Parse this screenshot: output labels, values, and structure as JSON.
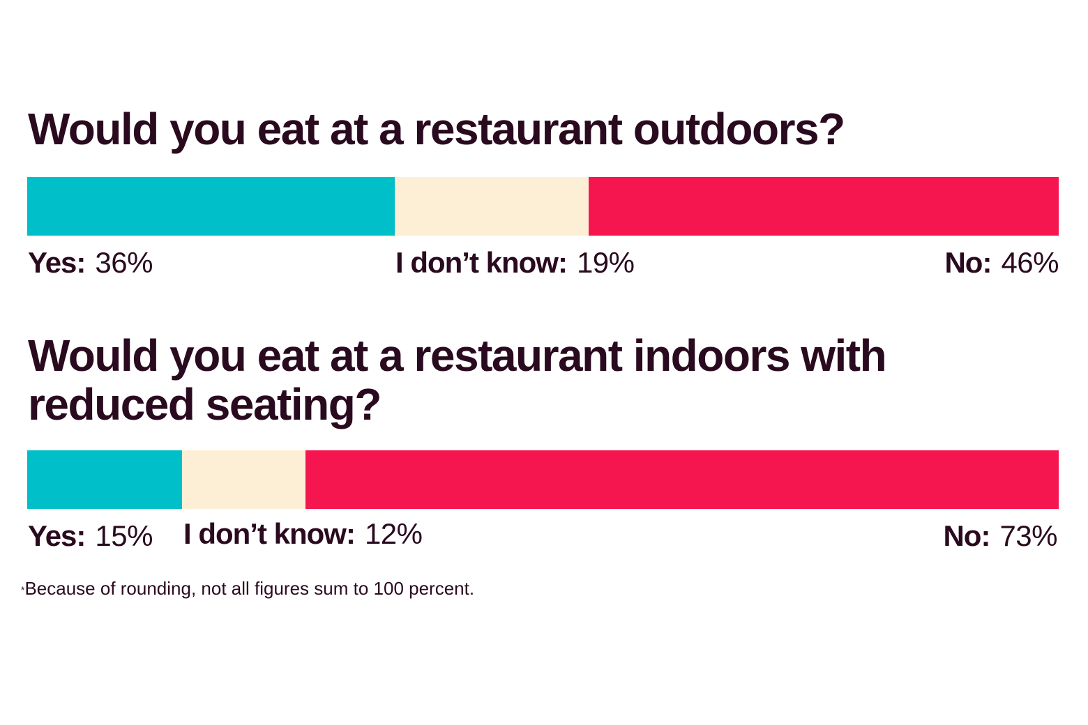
{
  "footnote": "Because of rounding, not all figures sum to 100 percent.",
  "footnote_mark": "*",
  "colors": {
    "yes": "#00bfc8",
    "dont_know": "#fcefd6",
    "no": "#f5164f"
  },
  "chart_data": [
    {
      "type": "bar",
      "title": "Would you eat at a restaurant outdoors?",
      "categories": [
        "Yes:",
        "I don’t know:",
        "No:"
      ],
      "values": [
        36,
        19,
        46
      ],
      "value_labels": [
        "36%",
        "19%",
        "46%"
      ],
      "stacked": true,
      "orientation": "horizontal",
      "legend": "none"
    },
    {
      "type": "bar",
      "title": "Would you eat at a restaurant indoors with reduced seating?",
      "categories": [
        "Yes:",
        "I don’t know:",
        "No:"
      ],
      "values": [
        15,
        12,
        73
      ],
      "value_labels": [
        "15%",
        "12%",
        "73%"
      ],
      "stacked": true,
      "orientation": "horizontal",
      "legend": "none"
    }
  ]
}
